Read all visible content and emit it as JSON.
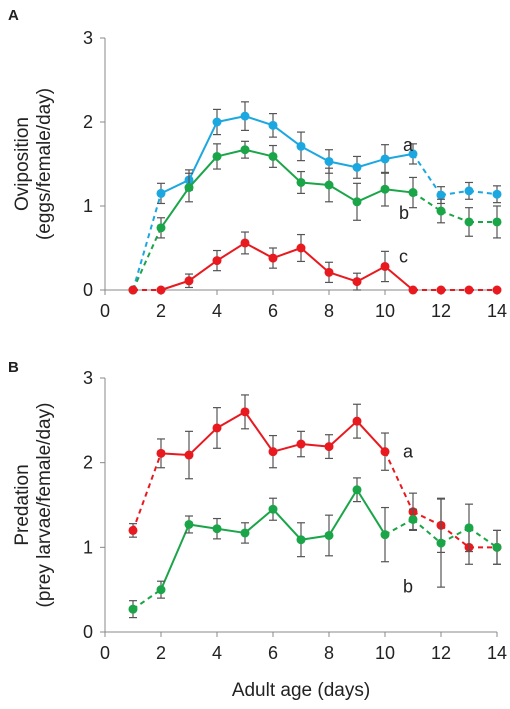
{
  "chart_data": [
    {
      "type": "line",
      "panel_label": "A",
      "ylabel_line1": "Oviposition",
      "ylabel_line2": "(eggs/female/day)",
      "xlabel": "",
      "xlim": [
        0,
        14
      ],
      "ylim": [
        0,
        3
      ],
      "x_ticks": [
        0,
        2,
        4,
        6,
        8,
        10,
        12,
        14
      ],
      "y_ticks": [
        0,
        1,
        2,
        3
      ],
      "x": [
        1,
        2,
        3,
        4,
        5,
        6,
        7,
        8,
        9,
        10,
        11,
        12,
        13,
        14
      ],
      "dashed_segments": [
        [
          1,
          2
        ],
        [
          11,
          14
        ]
      ],
      "series": [
        {
          "color": "#1ba7e0",
          "letter": "a",
          "values": [
            0,
            1.15,
            1.31,
            2.0,
            2.07,
            1.96,
            1.71,
            1.53,
            1.46,
            1.56,
            1.62,
            1.13,
            1.18,
            1.14
          ],
          "errors": [
            0,
            0.12,
            0.12,
            0.15,
            0.17,
            0.14,
            0.17,
            0.14,
            0.13,
            0.17,
            0.12,
            0.1,
            0.1,
            0.1
          ]
        },
        {
          "color": "#1aa548",
          "letter": "b",
          "values": [
            0,
            0.74,
            1.22,
            1.59,
            1.67,
            1.59,
            1.28,
            1.25,
            1.05,
            1.2,
            1.16,
            0.94,
            0.81,
            0.81
          ],
          "errors": [
            0,
            0.12,
            0.17,
            0.15,
            0.1,
            0.13,
            0.13,
            0.2,
            0.22,
            0.2,
            0.18,
            0.14,
            0.17,
            0.19
          ]
        },
        {
          "color": "#e8191f",
          "letter": "c",
          "values": [
            0,
            0,
            0.11,
            0.35,
            0.56,
            0.38,
            0.5,
            0.21,
            0.1,
            0.28,
            0,
            0,
            0,
            0
          ],
          "errors": [
            0,
            0,
            0.08,
            0.12,
            0.13,
            0.12,
            0.16,
            0.12,
            0.1,
            0.18,
            0,
            0,
            0,
            0
          ]
        }
      ]
    },
    {
      "type": "line",
      "panel_label": "B",
      "ylabel_line1": "Predation",
      "ylabel_line2": "(prey larvae/female/day)",
      "xlabel": "Adult age (days)",
      "xlim": [
        0,
        14
      ],
      "ylim": [
        0,
        3
      ],
      "x_ticks": [
        0,
        2,
        4,
        6,
        8,
        10,
        12,
        14
      ],
      "y_ticks": [
        0,
        1,
        2,
        3
      ],
      "x": [
        1,
        2,
        3,
        4,
        5,
        6,
        7,
        8,
        9,
        10,
        11,
        12,
        13,
        14
      ],
      "dashed_segments": [
        [
          1,
          2
        ],
        [
          10,
          14
        ]
      ],
      "series": [
        {
          "color": "#e8191f",
          "letter": "a",
          "values": [
            1.2,
            2.11,
            2.09,
            2.41,
            2.6,
            2.13,
            2.22,
            2.19,
            2.49,
            2.13,
            1.42,
            1.26,
            1.0,
            1.0
          ],
          "errors": [
            0.08,
            0.17,
            0.28,
            0.24,
            0.2,
            0.19,
            0.15,
            0.14,
            0.2,
            0.22,
            0.22,
            0.32,
            0.2,
            0.2
          ]
        },
        {
          "color": "#1aa548",
          "letter": "b",
          "values": [
            0.27,
            0.5,
            1.27,
            1.22,
            1.17,
            1.45,
            1.09,
            1.14,
            1.68,
            1.15,
            1.33,
            1.05,
            1.23,
            1.0
          ],
          "errors": [
            0.1,
            0.1,
            0.1,
            0.12,
            0.12,
            0.13,
            0.2,
            0.24,
            0.14,
            0.32,
            0.12,
            0.52,
            0.28,
            0.2
          ]
        }
      ]
    }
  ]
}
